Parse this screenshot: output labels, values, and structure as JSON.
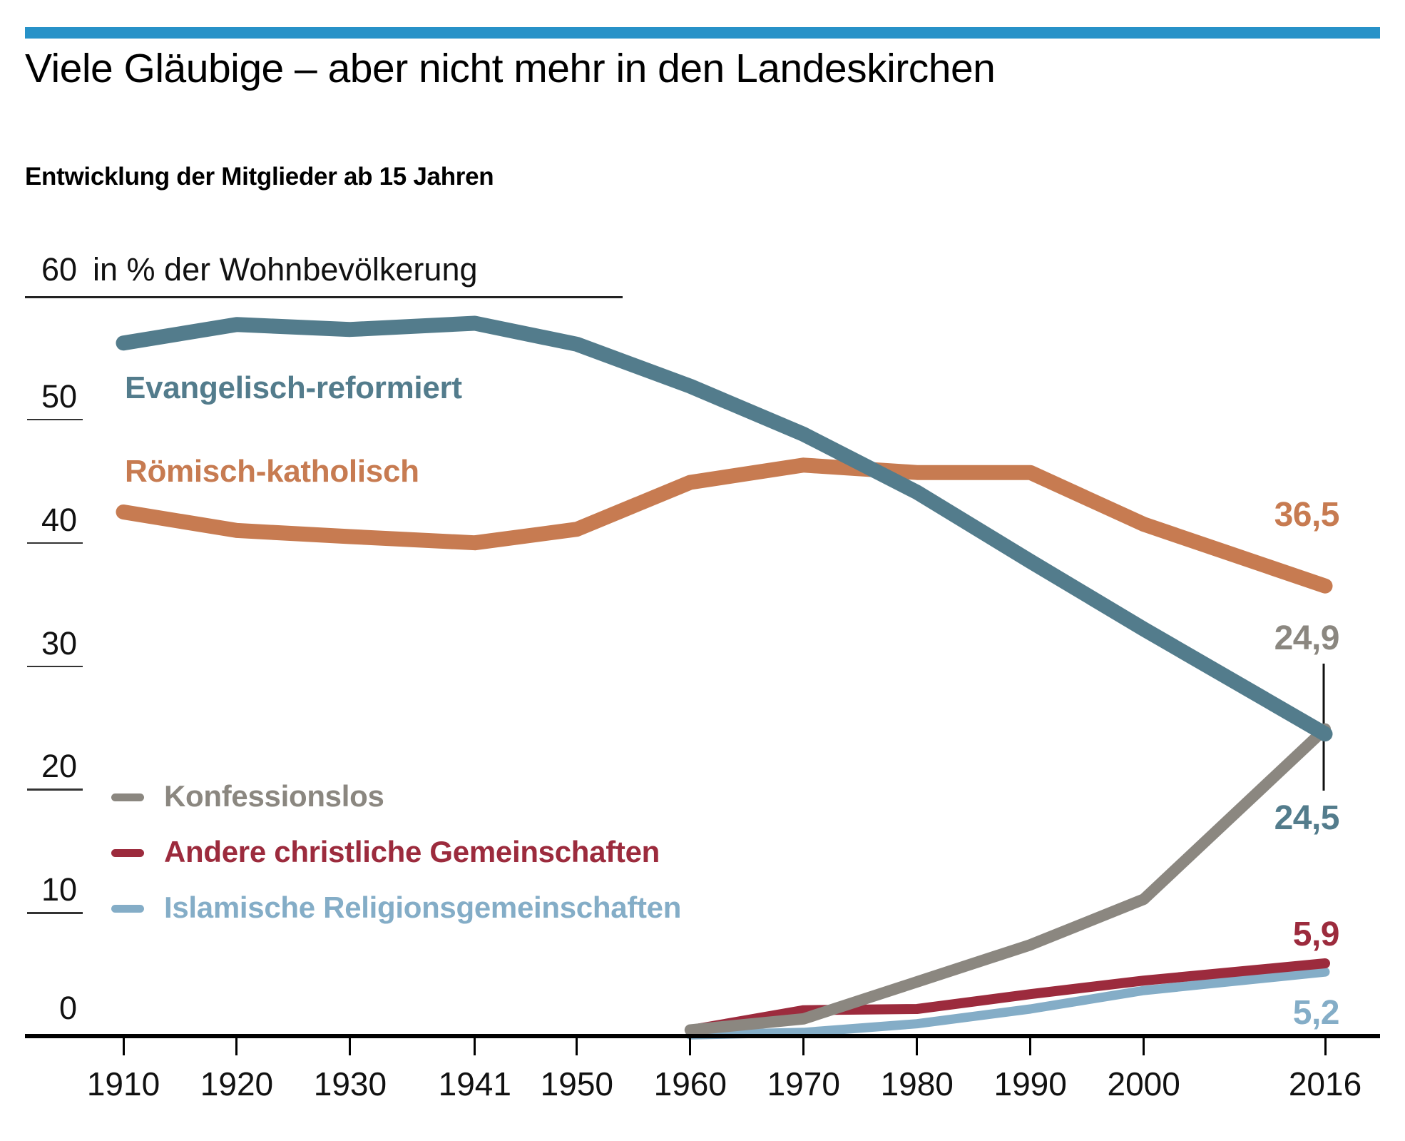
{
  "page": {
    "topbar_color": "#2792C8",
    "title": "Viele Gläubige – aber nicht mehr in den Landeskirchen",
    "subtitle": "Entwicklung der Mitglieder ab 15 Jahren"
  },
  "chart_data": {
    "type": "line",
    "title": "Entwicklung der Mitglieder ab 15 Jahren",
    "unit_label": "in % der Wohnbevölkerung",
    "ytick_top_label": "60",
    "ylim": [
      0,
      60
    ],
    "xlim": [
      1910,
      2016
    ],
    "yticks": [
      0,
      10,
      20,
      30,
      40,
      50,
      60
    ],
    "side_yticks": [
      50,
      40,
      30,
      20,
      10,
      0
    ],
    "xticks": [
      1910,
      1920,
      1930,
      1941,
      1950,
      1960,
      1970,
      1980,
      1990,
      2000,
      2016
    ],
    "grid": "short tick underlines on y-axis, tick marks below x-axis, no full gridlines",
    "legend_position": "series labels inside plot (top) and swatch legend bottom-left",
    "series": [
      {
        "name": "Evangelisch-reformiert",
        "color": "#537C8C",
        "end_label": "24,5",
        "points": [
          [
            1910,
            56.2
          ],
          [
            1920,
            57.7
          ],
          [
            1930,
            57.3
          ],
          [
            1941,
            57.8
          ],
          [
            1950,
            56.1
          ],
          [
            1960,
            52.7
          ],
          [
            1970,
            48.8
          ],
          [
            1980,
            44.1
          ],
          [
            1990,
            38.5
          ],
          [
            2000,
            33.0
          ],
          [
            2016,
            24.5
          ]
        ]
      },
      {
        "name": "Römisch-katholisch",
        "color": "#C77B51",
        "end_label": "36,5",
        "points": [
          [
            1910,
            42.5
          ],
          [
            1920,
            41.0
          ],
          [
            1930,
            40.5
          ],
          [
            1941,
            40.0
          ],
          [
            1950,
            41.1
          ],
          [
            1960,
            44.9
          ],
          [
            1970,
            46.3
          ],
          [
            1980,
            45.7
          ],
          [
            1990,
            45.7
          ],
          [
            2000,
            41.5
          ],
          [
            2016,
            36.5
          ]
        ]
      },
      {
        "name": "Konfessionslos",
        "color": "#8B8780",
        "end_label": "24,9",
        "points": [
          [
            1960,
            0.5
          ],
          [
            1970,
            1.4
          ],
          [
            1980,
            4.4
          ],
          [
            1990,
            7.4
          ],
          [
            2000,
            11.1
          ],
          [
            2016,
            24.9
          ]
        ]
      },
      {
        "name": "Andere christliche Gemeinschaften",
        "color": "#9C2B3D",
        "end_label": "5,9",
        "points": [
          [
            1960,
            0.5
          ],
          [
            1970,
            2.1
          ],
          [
            1980,
            2.2
          ],
          [
            1990,
            3.4
          ],
          [
            2000,
            4.5
          ],
          [
            2016,
            5.9
          ]
        ]
      },
      {
        "name": "Islamische Religionsgemeinschaften",
        "color": "#84ADC7",
        "end_label": "5,2",
        "points": [
          [
            1960,
            0.1
          ],
          [
            1970,
            0.3
          ],
          [
            1980,
            1.0
          ],
          [
            1990,
            2.2
          ],
          [
            2000,
            3.7
          ],
          [
            2016,
            5.2
          ]
        ]
      }
    ]
  }
}
